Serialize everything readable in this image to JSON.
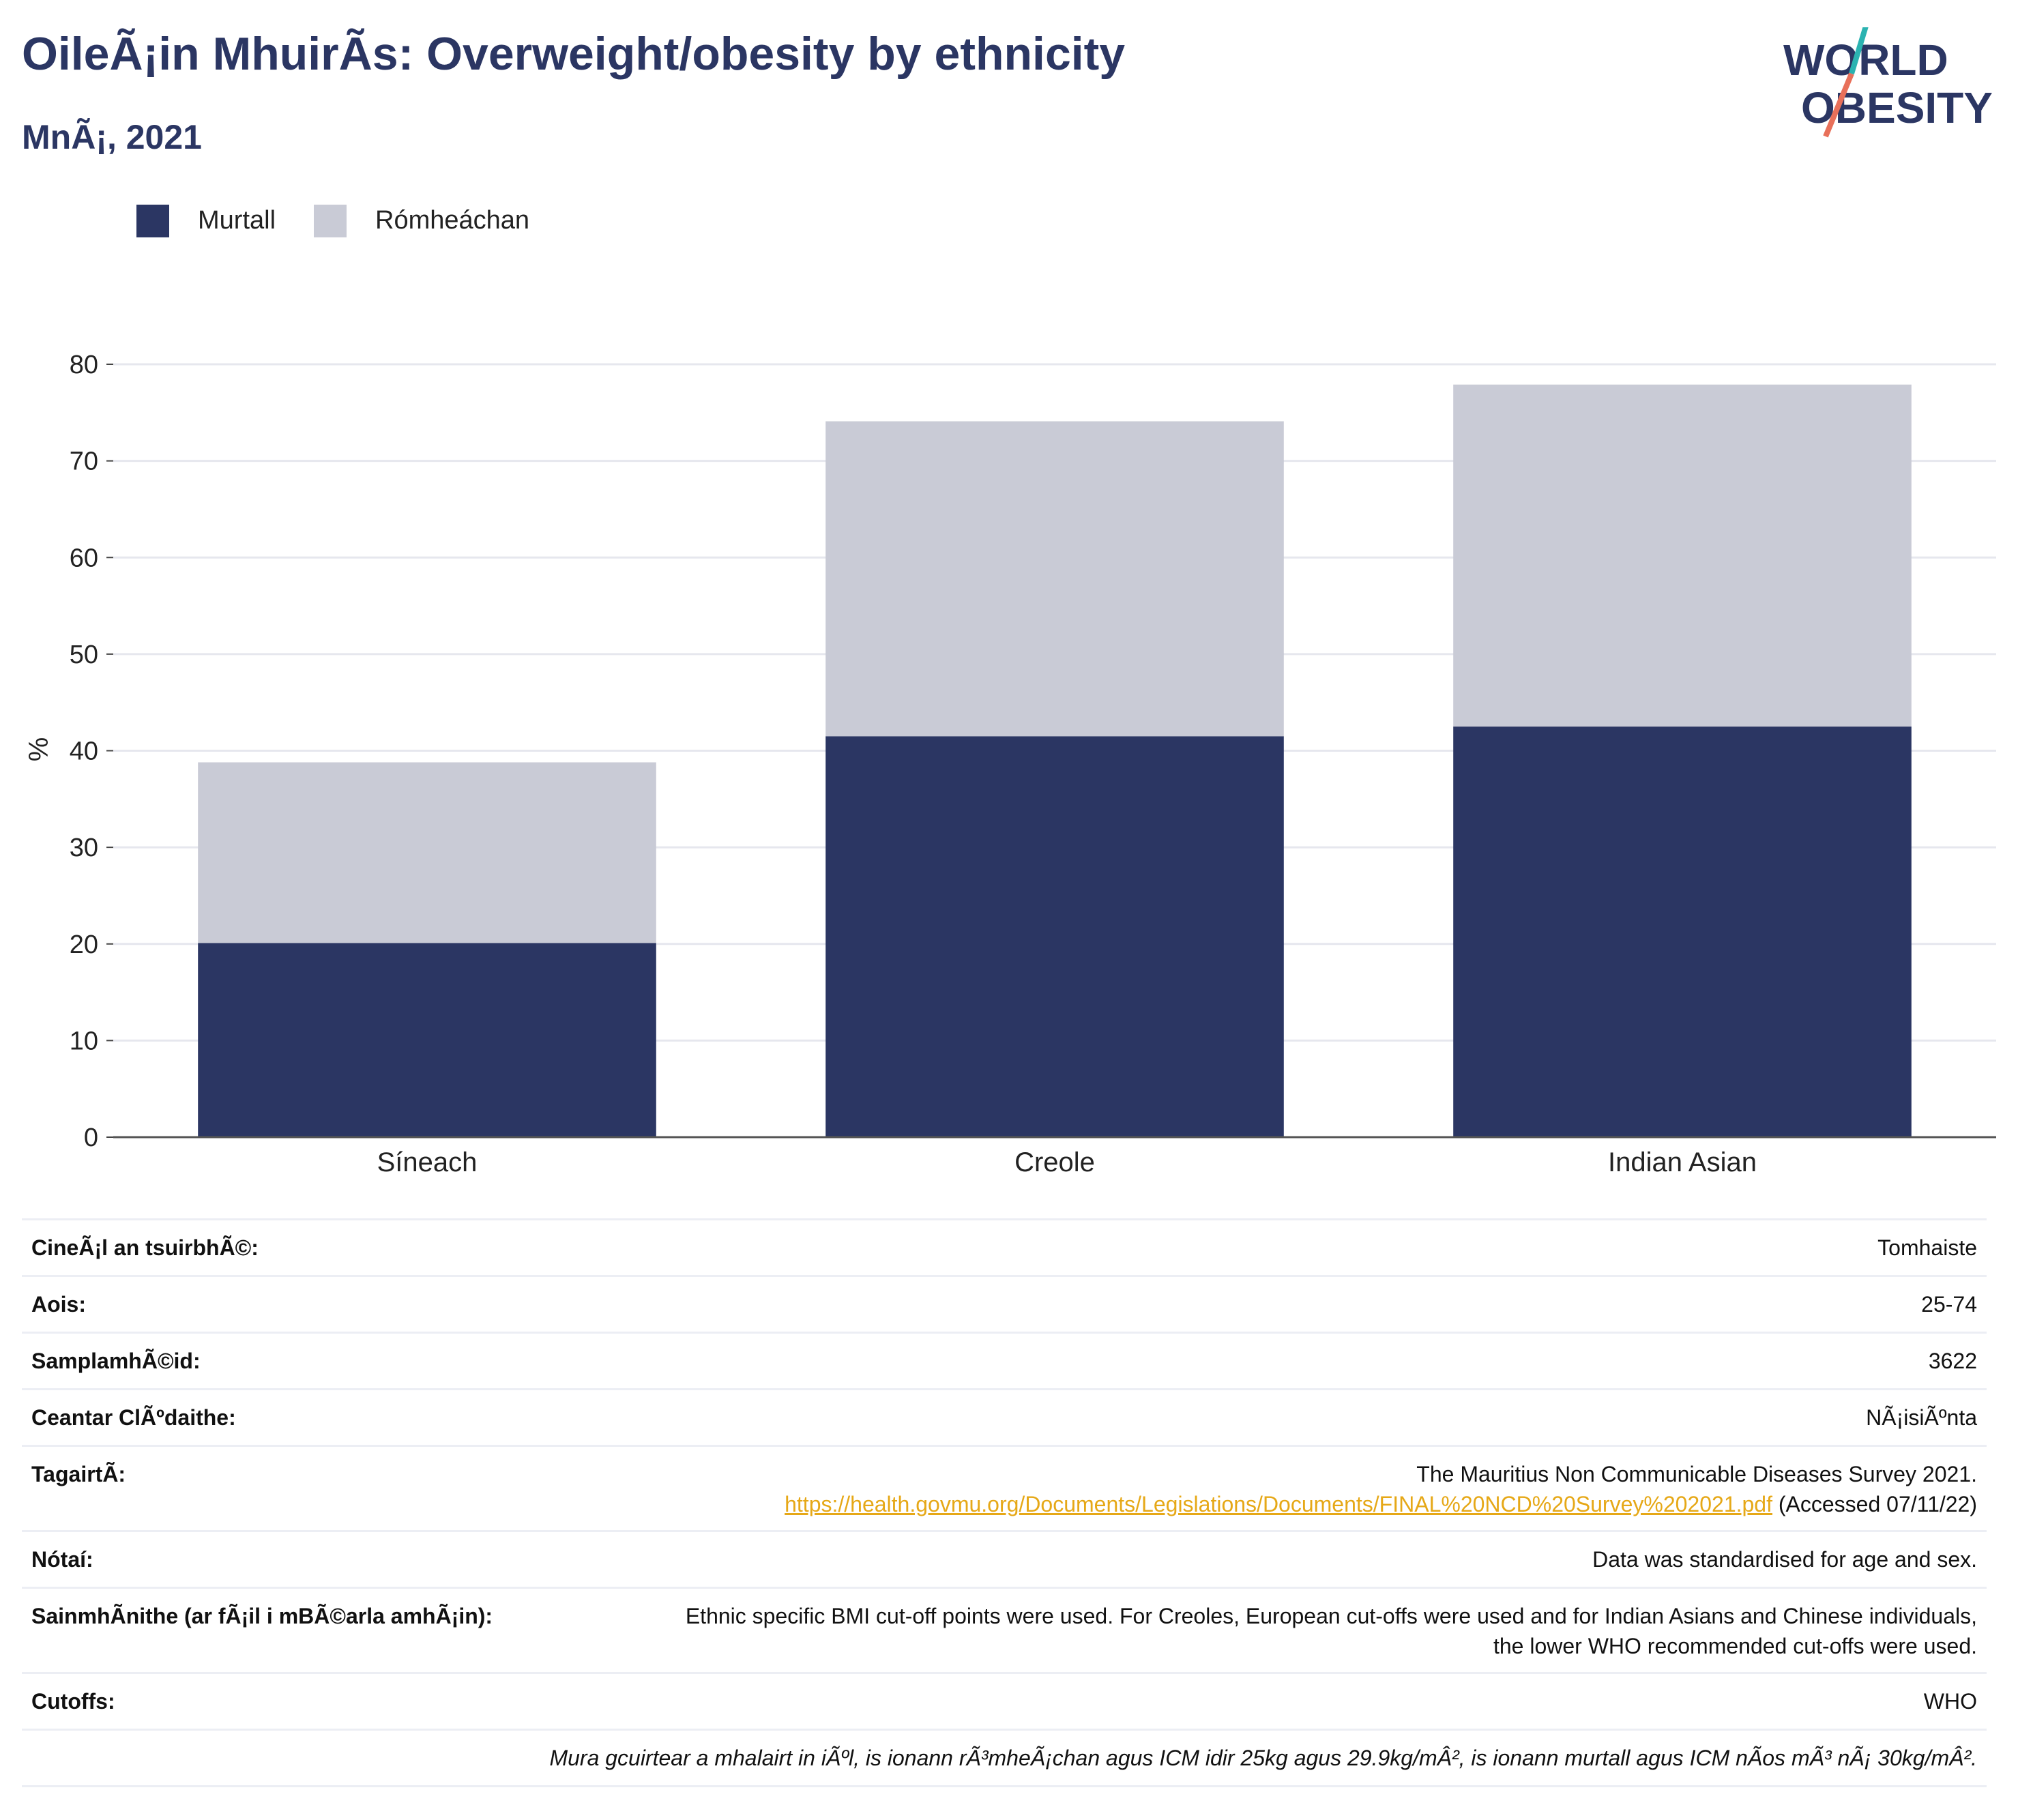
{
  "header": {
    "title": "OileÃ¡in MhuirÃ­s: Overweight/obesity by ethnicity",
    "subtitle": "MnÃ¡, 2021"
  },
  "logo": {
    "line1": "WORLD",
    "line2": "OBESITY",
    "accent_teal": "#2bb3b1",
    "accent_coral": "#e8705a"
  },
  "legend": {
    "items": [
      {
        "label": "Murtall",
        "color": "#2b3663"
      },
      {
        "label": "Rómheáchan",
        "color": "#c9cbd6"
      }
    ]
  },
  "chart_data": {
    "type": "bar",
    "stacked": true,
    "categories": [
      "Síneach",
      "Creole",
      "Indian Asian"
    ],
    "series": [
      {
        "name": "Murtall",
        "color": "#2b3663",
        "values": [
          20.1,
          41.5,
          42.5
        ]
      },
      {
        "name": "Rómheáchan",
        "color": "#c9cbd6",
        "values": [
          18.7,
          32.6,
          35.4
        ]
      }
    ],
    "ylabel": "%",
    "ylim": [
      0,
      80
    ],
    "yticks": [
      0,
      10,
      20,
      30,
      40,
      50,
      60,
      70,
      80
    ],
    "grid": true
  },
  "meta": {
    "rows": [
      {
        "label": "CineÃ¡l an tsuirbhÃ©:",
        "value": "Tomhaiste"
      },
      {
        "label": "Aois:",
        "value": "25-74"
      },
      {
        "label": "SamplamhÃ©id:",
        "value": "3622"
      },
      {
        "label": "Ceantar ClÃºdaithe:",
        "value": "NÃ¡isiÃºnta"
      }
    ],
    "reference": {
      "label": "TagairtÃ:",
      "line1": "The Mauritius Non Communicable Diseases Survey 2021.",
      "link": "https://health.govmu.org/Documents/Legislations/Documents/FINAL%20NCD%20Survey%202021.pdf",
      "accessed": "(Accessed 07/11/22)"
    },
    "notes": {
      "label": "Nótaí:",
      "value": "Data was standardised for age and sex."
    },
    "definitions": {
      "label": "SainmhÃ­nithe (ar fÃ¡il i mBÃ©arla amhÃ¡in):",
      "line1": "Ethnic specific BMI cut-off points were used. For Creoles, European cut-offs were used and for Indian Asians and Chinese individuals,",
      "line2": "the lower WHO recommended cut-offs were used."
    },
    "cutoffs": {
      "label": "Cutoffs:",
      "value": "WHO"
    },
    "footnote": "Mura gcuirtear a mhalairt in iÃºl, is ionann rÃ³mheÃ¡chan agus ICM idir 25kg agus 29.9kg/mÂ², is ionann murtall agus ICM nÃ­os mÃ³ nÃ¡ 30kg/mÂ²."
  }
}
